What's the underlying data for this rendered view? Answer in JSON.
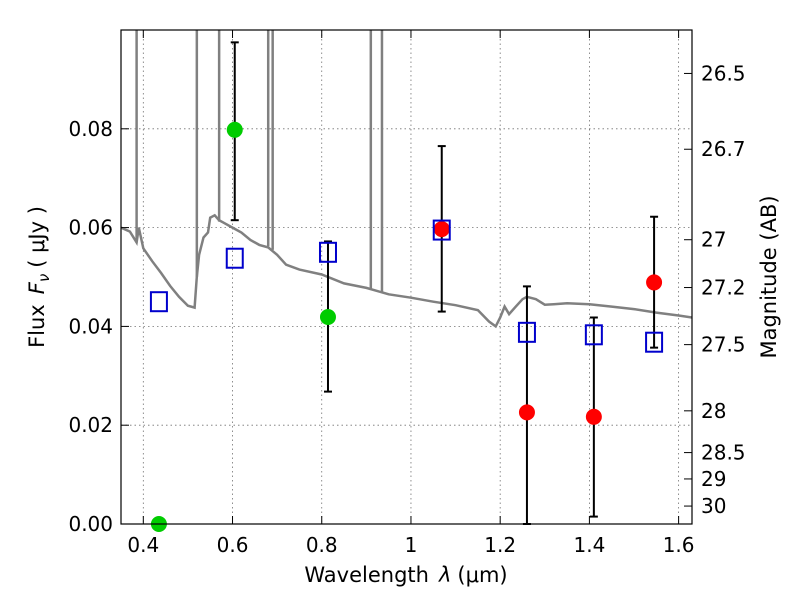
{
  "chart_data": {
    "type": "scatter",
    "title": "",
    "xlabel": "Wavelength",
    "xlabel_symbol": "λ",
    "xlabel_unit": "(μm)",
    "ylabel": "Flux",
    "ylabel_symbol": "F",
    "ylabel_subscript": "ν",
    "ylabel_unit": "( μJy )",
    "y2label": "Magnitude (AB)",
    "xlim": [
      0.35,
      1.63
    ],
    "ylim": [
      0.0,
      0.1
    ],
    "grid": true,
    "x_ticks": [
      {
        "value": 0.4,
        "label": "0.4"
      },
      {
        "value": 0.6,
        "label": "0.6"
      },
      {
        "value": 0.8,
        "label": "0.8"
      },
      {
        "value": 1.0,
        "label": "1"
      },
      {
        "value": 1.2,
        "label": "1.2"
      },
      {
        "value": 1.4,
        "label": "1.4"
      },
      {
        "value": 1.6,
        "label": "1.6"
      }
    ],
    "y_ticks": [
      {
        "value": 0.0,
        "label": "0.00"
      },
      {
        "value": 0.02,
        "label": "0.02"
      },
      {
        "value": 0.04,
        "label": "0.04"
      },
      {
        "value": 0.06,
        "label": "0.06"
      },
      {
        "value": 0.08,
        "label": "0.08"
      }
    ],
    "y2_ticks": [
      {
        "value": 26.5,
        "label": "26.5"
      },
      {
        "value": 26.7,
        "label": "26.7"
      },
      {
        "value": 27.0,
        "label": "27"
      },
      {
        "value": 27.2,
        "label": "27.2"
      },
      {
        "value": 27.5,
        "label": "27.5"
      },
      {
        "value": 28.0,
        "label": "28"
      },
      {
        "value": 28.5,
        "label": "28.5"
      },
      {
        "value": 29.0,
        "label": "29"
      },
      {
        "value": 30.0,
        "label": "30"
      }
    ],
    "series": [
      {
        "marker": "circle",
        "color": "#00cc00",
        "points": [
          {
            "x": 0.435,
            "y": 0.0
          },
          {
            "x": 0.605,
            "y": 0.0798,
            "yerr_low": 0.0615,
            "yerr_high": 0.0975
          },
          {
            "x": 0.814,
            "y": 0.0419,
            "yerr_low": 0.0268,
            "yerr_high": 0.0572
          }
        ]
      },
      {
        "marker": "circle",
        "color": "#ff0000",
        "points": [
          {
            "x": 1.069,
            "y": 0.0597,
            "yerr_low": 0.043,
            "yerr_high": 0.0765
          },
          {
            "x": 1.26,
            "y": 0.0226,
            "yerr_low": 0.0,
            "yerr_high": 0.0481
          },
          {
            "x": 1.41,
            "y": 0.0217,
            "yerr_low": 0.0015,
            "yerr_high": 0.0418
          },
          {
            "x": 1.545,
            "y": 0.0489,
            "yerr_low": 0.0357,
            "yerr_high": 0.0622
          }
        ]
      },
      {
        "marker": "open-square",
        "color": "#0000cc",
        "points": [
          {
            "x": 0.435,
            "y": 0.045
          },
          {
            "x": 0.605,
            "y": 0.0538
          },
          {
            "x": 0.814,
            "y": 0.055
          },
          {
            "x": 1.069,
            "y": 0.0595
          },
          {
            "x": 1.26,
            "y": 0.0388
          },
          {
            "x": 1.41,
            "y": 0.0383
          },
          {
            "x": 1.545,
            "y": 0.0368
          }
        ]
      },
      {
        "marker": "line",
        "color": "#808080",
        "points": [
          {
            "x": 0.35,
            "y": 0.06
          },
          {
            "x": 0.37,
            "y": 0.0592
          },
          {
            "x": 0.385,
            "y": 0.057
          },
          {
            "x": 0.39,
            "y": 0.06
          },
          {
            "x": 0.4,
            "y": 0.0558
          },
          {
            "x": 0.42,
            "y": 0.0532
          },
          {
            "x": 0.44,
            "y": 0.0508
          },
          {
            "x": 0.46,
            "y": 0.0482
          },
          {
            "x": 0.48,
            "y": 0.046
          },
          {
            "x": 0.5,
            "y": 0.0442
          },
          {
            "x": 0.515,
            "y": 0.0438
          },
          {
            "x": 0.52,
            "y": 0.05
          },
          {
            "x": 0.525,
            "y": 0.0545
          },
          {
            "x": 0.535,
            "y": 0.058
          },
          {
            "x": 0.545,
            "y": 0.059
          },
          {
            "x": 0.55,
            "y": 0.062
          },
          {
            "x": 0.56,
            "y": 0.0625
          },
          {
            "x": 0.57,
            "y": 0.0615
          },
          {
            "x": 0.58,
            "y": 0.061
          },
          {
            "x": 0.6,
            "y": 0.06
          },
          {
            "x": 0.62,
            "y": 0.059
          },
          {
            "x": 0.64,
            "y": 0.0575
          },
          {
            "x": 0.66,
            "y": 0.0565
          },
          {
            "x": 0.68,
            "y": 0.056
          },
          {
            "x": 0.7,
            "y": 0.0545
          },
          {
            "x": 0.72,
            "y": 0.0525
          },
          {
            "x": 0.75,
            "y": 0.0515
          },
          {
            "x": 0.8,
            "y": 0.0505
          },
          {
            "x": 0.85,
            "y": 0.0487
          },
          {
            "x": 0.9,
            "y": 0.0478
          },
          {
            "x": 0.95,
            "y": 0.0465
          },
          {
            "x": 1.0,
            "y": 0.0458
          },
          {
            "x": 1.05,
            "y": 0.045
          },
          {
            "x": 1.1,
            "y": 0.0443
          },
          {
            "x": 1.15,
            "y": 0.0433
          },
          {
            "x": 1.175,
            "y": 0.041
          },
          {
            "x": 1.19,
            "y": 0.04
          },
          {
            "x": 1.2,
            "y": 0.0418
          },
          {
            "x": 1.21,
            "y": 0.044
          },
          {
            "x": 1.22,
            "y": 0.0425
          },
          {
            "x": 1.235,
            "y": 0.044
          },
          {
            "x": 1.25,
            "y": 0.0455
          },
          {
            "x": 1.26,
            "y": 0.046
          },
          {
            "x": 1.28,
            "y": 0.0455
          },
          {
            "x": 1.3,
            "y": 0.0444
          },
          {
            "x": 1.32,
            "y": 0.0445
          },
          {
            "x": 1.35,
            "y": 0.0447
          },
          {
            "x": 1.4,
            "y": 0.0445
          },
          {
            "x": 1.45,
            "y": 0.044
          },
          {
            "x": 1.5,
            "y": 0.0435
          },
          {
            "x": 1.55,
            "y": 0.0428
          },
          {
            "x": 1.6,
            "y": 0.0422
          },
          {
            "x": 1.63,
            "y": 0.0418
          }
        ]
      }
    ],
    "emission_spikes": [
      {
        "x": 0.385,
        "y_low": 0.057
      },
      {
        "x": 0.52,
        "y_low": 0.05
      },
      {
        "x": 0.57,
        "y_low": 0.0612
      },
      {
        "x": 0.68,
        "y_low": 0.0562
      },
      {
        "x": 0.69,
        "y_low": 0.0555
      },
      {
        "x": 0.91,
        "y_low": 0.0475
      },
      {
        "x": 0.935,
        "y_low": 0.047
      }
    ]
  }
}
